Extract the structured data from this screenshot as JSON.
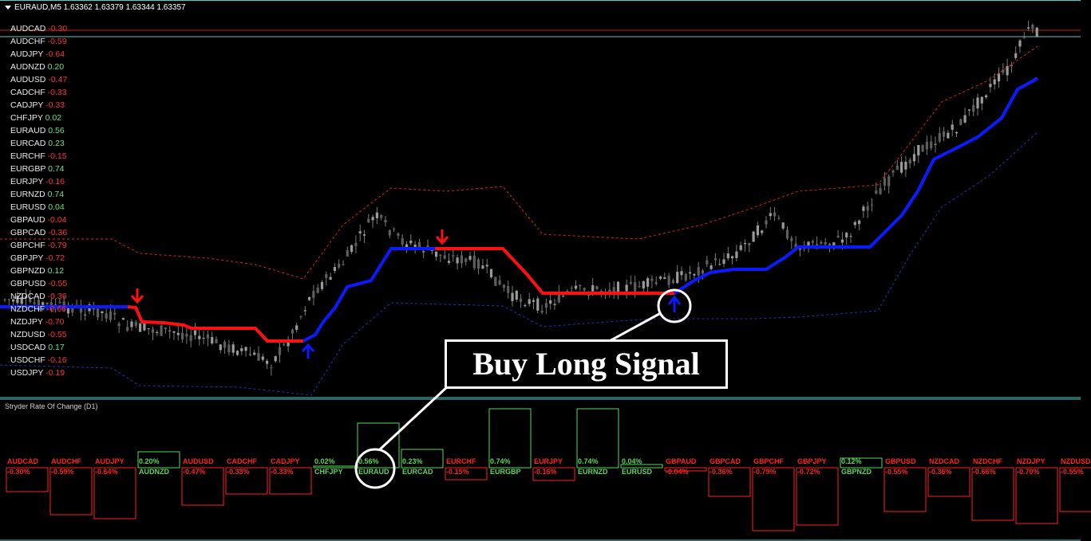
{
  "header": {
    "title": "EURAUD,M5  1.63362 1.63379 1.63344 1.63357"
  },
  "watchlist": [
    {
      "symbol": "AUDCAD",
      "value": "-0.30"
    },
    {
      "symbol": "AUDCHF",
      "value": "-0.59"
    },
    {
      "symbol": "AUDJPY",
      "value": "-0.64"
    },
    {
      "symbol": "AUDNZD",
      "value": "0.20"
    },
    {
      "symbol": "AUDUSD",
      "value": "-0.47"
    },
    {
      "symbol": "CADCHF",
      "value": "-0.33"
    },
    {
      "symbol": "CADJPY",
      "value": "-0.33"
    },
    {
      "symbol": "CHFJPY",
      "value": "0.02"
    },
    {
      "symbol": "EURAUD",
      "value": "0.56"
    },
    {
      "symbol": "EURCAD",
      "value": "0.23"
    },
    {
      "symbol": "EURCHF",
      "value": "-0.15"
    },
    {
      "symbol": "EURGBP",
      "value": "0.74"
    },
    {
      "symbol": "EURJPY",
      "value": "-0.16"
    },
    {
      "symbol": "EURNZD",
      "value": "0.74"
    },
    {
      "symbol": "EURUSD",
      "value": "0.04"
    },
    {
      "symbol": "GBPAUD",
      "value": "-0.04"
    },
    {
      "symbol": "GBPCAD",
      "value": "-0.36"
    },
    {
      "symbol": "GBPCHF",
      "value": "-0.79"
    },
    {
      "symbol": "GBPJPY",
      "value": "-0.72"
    },
    {
      "symbol": "GBPNZD",
      "value": "0.12"
    },
    {
      "symbol": "GBPUSD",
      "value": "-0.55"
    },
    {
      "symbol": "NZDCAD",
      "value": "-0.36"
    },
    {
      "symbol": "NZDCHF",
      "value": "-0.66"
    },
    {
      "symbol": "NZDJPY",
      "value": "-0.70"
    },
    {
      "symbol": "NZDUSD",
      "value": "-0.55"
    },
    {
      "symbol": "USDCAD",
      "value": "0.17"
    },
    {
      "symbol": "USDCHF",
      "value": "-0.16"
    },
    {
      "symbol": "USDJPY",
      "value": "-0.19"
    }
  ],
  "callout": {
    "text": "Buy Long Signal"
  },
  "subwindow": {
    "label": "Stryder Rate Of Change (D1)",
    "bars": [
      {
        "symbol": "AUDCAD",
        "value": "-0.30%",
        "v": -0.3
      },
      {
        "symbol": "AUDCHF",
        "value": "-0.59%",
        "v": -0.59
      },
      {
        "symbol": "AUDJPY",
        "value": "-0.64%",
        "v": -0.64
      },
      {
        "symbol": "AUDNZD",
        "value": "0.20%",
        "v": 0.2
      },
      {
        "symbol": "AUDUSD",
        "value": "-0.47%",
        "v": -0.47
      },
      {
        "symbol": "CADCHF",
        "value": "-0.33%",
        "v": -0.33
      },
      {
        "symbol": "CADJPY",
        "value": "-0.33%",
        "v": -0.33
      },
      {
        "symbol": "CHFJPY",
        "value": "0.02%",
        "v": 0.02
      },
      {
        "symbol": "EURAUD",
        "value": "0.56%",
        "v": 0.56
      },
      {
        "symbol": "EURCAD",
        "value": "0.23%",
        "v": 0.23
      },
      {
        "symbol": "EURCHF",
        "value": "-0.15%",
        "v": -0.15
      },
      {
        "symbol": "EURGBP",
        "value": "0.74%",
        "v": 0.74
      },
      {
        "symbol": "EURJPY",
        "value": "-0.16%",
        "v": -0.16
      },
      {
        "symbol": "EURNZD",
        "value": "0.74%",
        "v": 0.74
      },
      {
        "symbol": "EURUSD",
        "value": "0.04%",
        "v": 0.04
      },
      {
        "symbol": "GBPAUD",
        "value": "-0.04%",
        "v": -0.04
      },
      {
        "symbol": "GBPCAD",
        "value": "-0.36%",
        "v": -0.36
      },
      {
        "symbol": "GBPCHF",
        "value": "-0.79%",
        "v": -0.79
      },
      {
        "symbol": "GBPJPY",
        "value": "-0.72%",
        "v": -0.72
      },
      {
        "symbol": "GBPNZD",
        "value": "0.12%",
        "v": 0.12
      },
      {
        "symbol": "GBPUSD",
        "value": "-0.55%",
        "v": -0.55
      },
      {
        "symbol": "NZDCAD",
        "value": "-0.36%",
        "v": -0.36
      },
      {
        "symbol": "NZDCHF",
        "value": "-0.66%",
        "v": -0.66
      },
      {
        "symbol": "NZDJPY",
        "value": "-0.70%",
        "v": -0.7
      },
      {
        "symbol": "NZDUSD",
        "value": "-0.55%",
        "v": -0.55
      }
    ]
  },
  "colors": {
    "positive": "#5cd65c",
    "negative": "#ff2020",
    "up_trend": "#0a1cff",
    "down_trend": "#ff1010",
    "candle": "#8a8a8a",
    "frame": "#5ac8c8"
  }
}
